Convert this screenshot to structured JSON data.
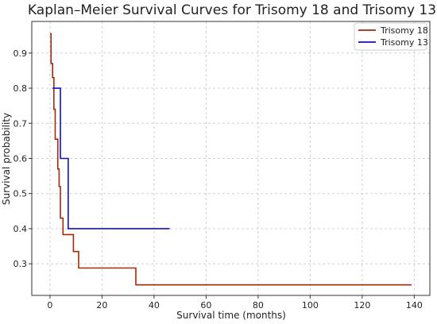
{
  "chart_data": {
    "type": "line",
    "title": "Kaplan–Meier Survival Curves for Trisomy 18 and Trisomy 13",
    "xlabel": "Survival time (months)",
    "ylabel": "Survival probability",
    "xlim": [
      -7,
      146
    ],
    "ylim": [
      0.21,
      0.99
    ],
    "xticks": [
      0,
      20,
      40,
      60,
      80,
      100,
      120,
      140
    ],
    "yticks": [
      0.3,
      0.4,
      0.5,
      0.6,
      0.7,
      0.8,
      0.9
    ],
    "xtick_labels": [
      "0",
      "20",
      "40",
      "60",
      "80",
      "100",
      "120",
      "140"
    ],
    "ytick_labels": [
      "0.3",
      "0.4",
      "0.5",
      "0.6",
      "0.7",
      "0.8",
      "0.9"
    ],
    "grid": true,
    "legend": "top-right",
    "series": [
      {
        "name": "Trisomy 18",
        "color": "#a52a0a",
        "step": "post",
        "x": [
          0,
          0.4,
          1.0,
          1.5,
          2.0,
          3.0,
          3.5,
          4.0,
          5.0,
          9.0,
          11.0,
          33.0,
          139.0
        ],
        "y": [
          0.955,
          0.87,
          0.83,
          0.74,
          0.655,
          0.57,
          0.52,
          0.43,
          0.383,
          0.335,
          0.288,
          0.24,
          0.24
        ]
      },
      {
        "name": "Trisomy 13",
        "color": "#1010c8",
        "step": "post",
        "x": [
          1.0,
          4.0,
          7.0,
          46.0
        ],
        "y": [
          0.8,
          0.6,
          0.4,
          0.4
        ]
      }
    ]
  }
}
